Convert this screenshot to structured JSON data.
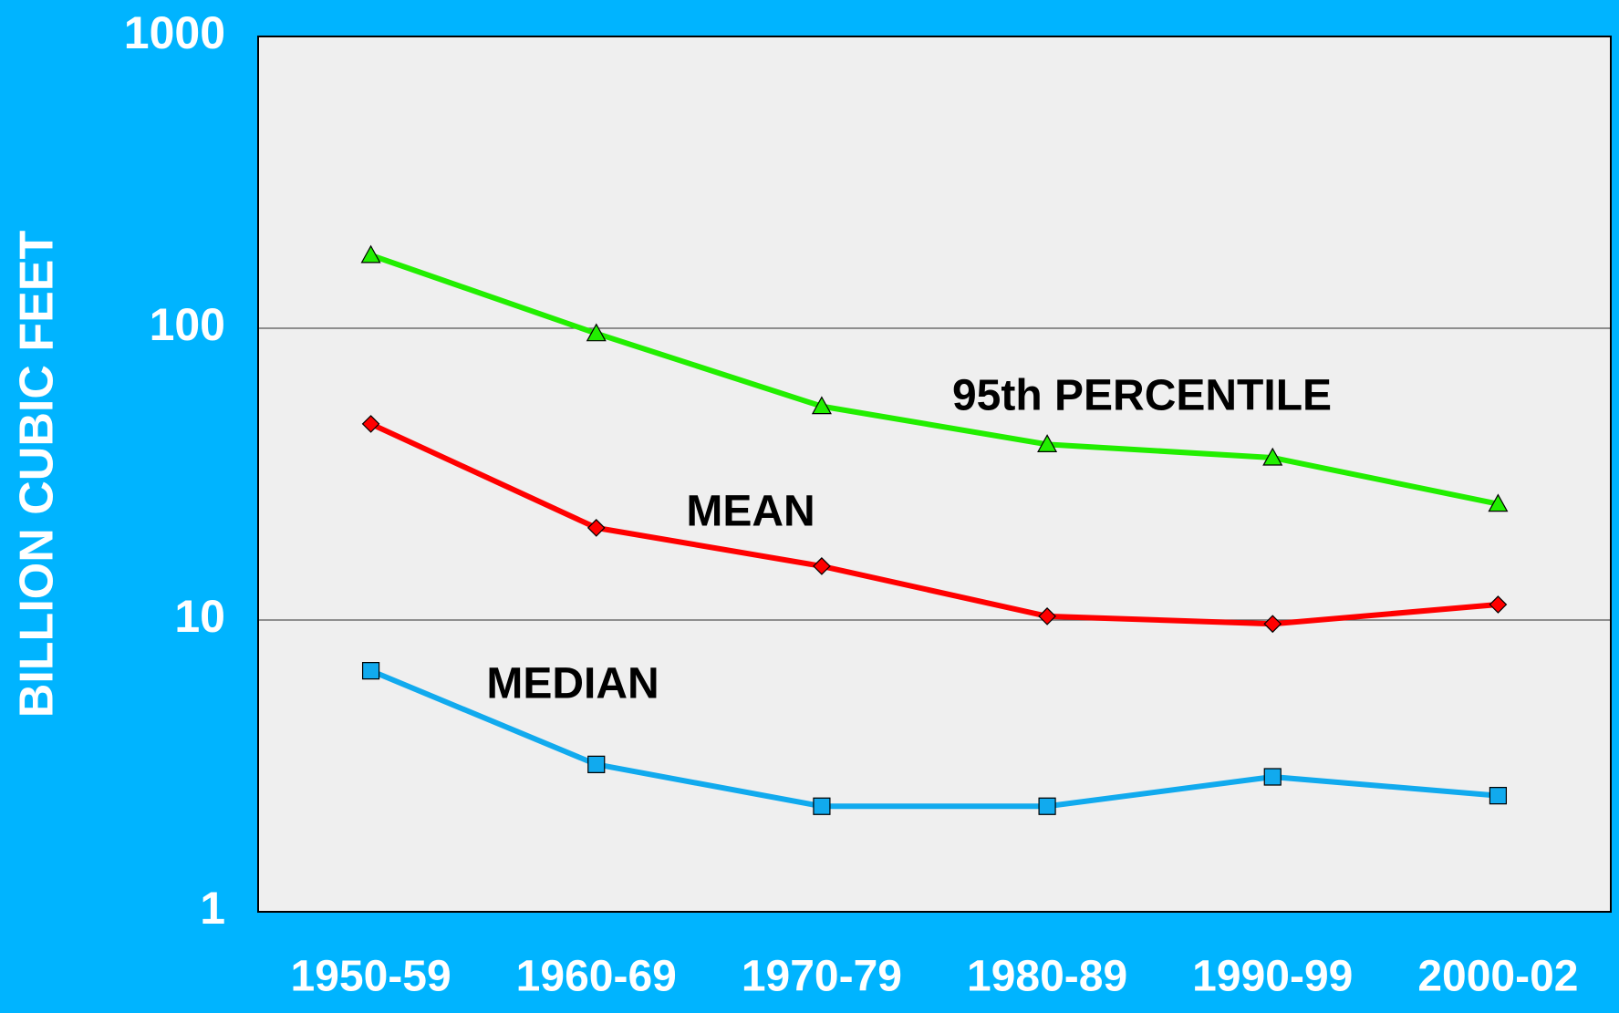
{
  "chart_data": {
    "type": "line",
    "y_label": "BILLION CUBIC FEET",
    "categories": [
      "1950-59",
      "1960-69",
      "1970-79",
      "1980-89",
      "1990-99",
      "2000-02"
    ],
    "series": [
      {
        "name": "95th PERCENTILE",
        "color": "#22ee00",
        "marker": "triangle",
        "values": [
          178,
          96,
          54,
          40,
          36,
          25
        ]
      },
      {
        "name": "MEAN",
        "color": "#ff0000",
        "marker": "diamond",
        "values": [
          47,
          20.7,
          15.3,
          10.3,
          9.7,
          11.3
        ]
      },
      {
        "name": "MEDIAN",
        "color": "#11aaee",
        "marker": "square",
        "values": [
          6.7,
          3.2,
          2.3,
          2.3,
          2.9,
          2.5
        ]
      }
    ],
    "ylim": [
      1,
      1000
    ],
    "yticks": [
      1,
      10,
      100,
      1000
    ],
    "log_y": true,
    "grid": true
  }
}
